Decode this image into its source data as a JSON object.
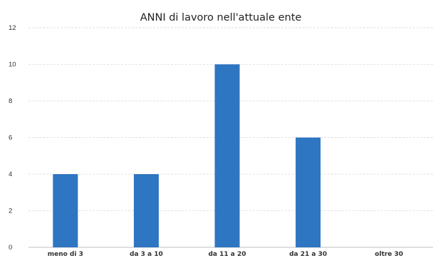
{
  "chart_data": {
    "type": "bar",
    "title": "ANNI di lavoro nell'attuale ente",
    "categories": [
      "meno di 3",
      "da 3 a 10",
      "da 11 a 20",
      "da 21 a 30",
      "oltre 30"
    ],
    "values": [
      4,
      4,
      10,
      6,
      0
    ],
    "yticks": [
      "0",
      "2",
      "4",
      "6",
      "8",
      "10",
      "12"
    ],
    "ylim": [
      0,
      12
    ],
    "xlabel": "",
    "ylabel": "",
    "grid": true,
    "legend": "none",
    "bar_color": "#2e75c2"
  }
}
